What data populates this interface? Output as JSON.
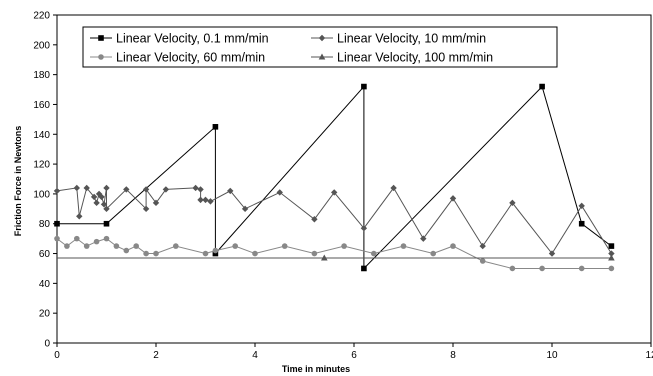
{
  "chart_data": {
    "type": "line",
    "title": "",
    "xlabel": "Time in minutes",
    "ylabel": "Friction Force in Newtons",
    "xlim": [
      0,
      12
    ],
    "ylim": [
      0,
      220
    ],
    "xticks": [
      "0",
      "2",
      "4",
      "6",
      "8",
      "10",
      "12"
    ],
    "yticks": [
      "0",
      "20",
      "40",
      "60",
      "80",
      "100",
      "120",
      "140",
      "160",
      "180",
      "200",
      "220"
    ],
    "grid": false,
    "legend_position": "top",
    "series": [
      {
        "name": "Linear Velocity, 0.1 mm/min",
        "marker": "square",
        "color": "#000000",
        "points": [
          [
            0,
            80
          ],
          [
            1,
            80
          ],
          [
            3.2,
            145
          ],
          [
            3.2,
            60
          ],
          [
            6.2,
            172
          ],
          [
            6.2,
            50
          ],
          [
            9.8,
            172
          ],
          [
            10.6,
            80
          ],
          [
            11.2,
            65
          ]
        ]
      },
      {
        "name": "Linear Velocity, 10 mm/min",
        "marker": "diamond",
        "color": "#555555",
        "points": [
          [
            0,
            102
          ],
          [
            0.4,
            104
          ],
          [
            0.45,
            85
          ],
          [
            0.6,
            104
          ],
          [
            0.75,
            98
          ],
          [
            0.8,
            94
          ],
          [
            0.85,
            100
          ],
          [
            0.9,
            98
          ],
          [
            0.95,
            93
          ],
          [
            1,
            104
          ],
          [
            1,
            90
          ],
          [
            1.4,
            103
          ],
          [
            1.8,
            90
          ],
          [
            1.8,
            103
          ],
          [
            2,
            94
          ],
          [
            2.2,
            103
          ],
          [
            2.8,
            104
          ],
          [
            2.9,
            103
          ],
          [
            2.9,
            96
          ],
          [
            3,
            96
          ],
          [
            3.1,
            95
          ],
          [
            3.5,
            102
          ],
          [
            3.8,
            90
          ],
          [
            4.5,
            101
          ],
          [
            5.2,
            83
          ],
          [
            5.6,
            101
          ],
          [
            6.2,
            77
          ],
          [
            6.8,
            104
          ],
          [
            7.4,
            70
          ],
          [
            8,
            97
          ],
          [
            8.6,
            65
          ],
          [
            9.2,
            94
          ],
          [
            10,
            60
          ],
          [
            10.6,
            92
          ],
          [
            11.2,
            60
          ]
        ]
      },
      {
        "name": "Linear Velocity, 60 mm/min",
        "marker": "circle",
        "color": "#888888",
        "points": [
          [
            0,
            70
          ],
          [
            0.2,
            65
          ],
          [
            0.4,
            70
          ],
          [
            0.6,
            65
          ],
          [
            0.8,
            68
          ],
          [
            1,
            70
          ],
          [
            1.2,
            65
          ],
          [
            1.4,
            62
          ],
          [
            1.6,
            65
          ],
          [
            1.8,
            60
          ],
          [
            2,
            60
          ],
          [
            2.4,
            65
          ],
          [
            3,
            60
          ],
          [
            3.2,
            62
          ],
          [
            3.6,
            65
          ],
          [
            4,
            60
          ],
          [
            4.6,
            65
          ],
          [
            5.2,
            60
          ],
          [
            5.8,
            65
          ],
          [
            6.4,
            60
          ],
          [
            7,
            65
          ],
          [
            7.6,
            60
          ],
          [
            8,
            65
          ],
          [
            8.6,
            55
          ],
          [
            9.2,
            50
          ],
          [
            9.8,
            50
          ],
          [
            10.6,
            50
          ],
          [
            11.2,
            50
          ]
        ]
      },
      {
        "name": "Linear Velocity, 100 mm/min",
        "marker": "triangle",
        "color": "#555555",
        "points": [
          [
            0,
            57
          ],
          [
            5.4,
            57
          ],
          [
            11.2,
            57
          ]
        ]
      }
    ]
  }
}
